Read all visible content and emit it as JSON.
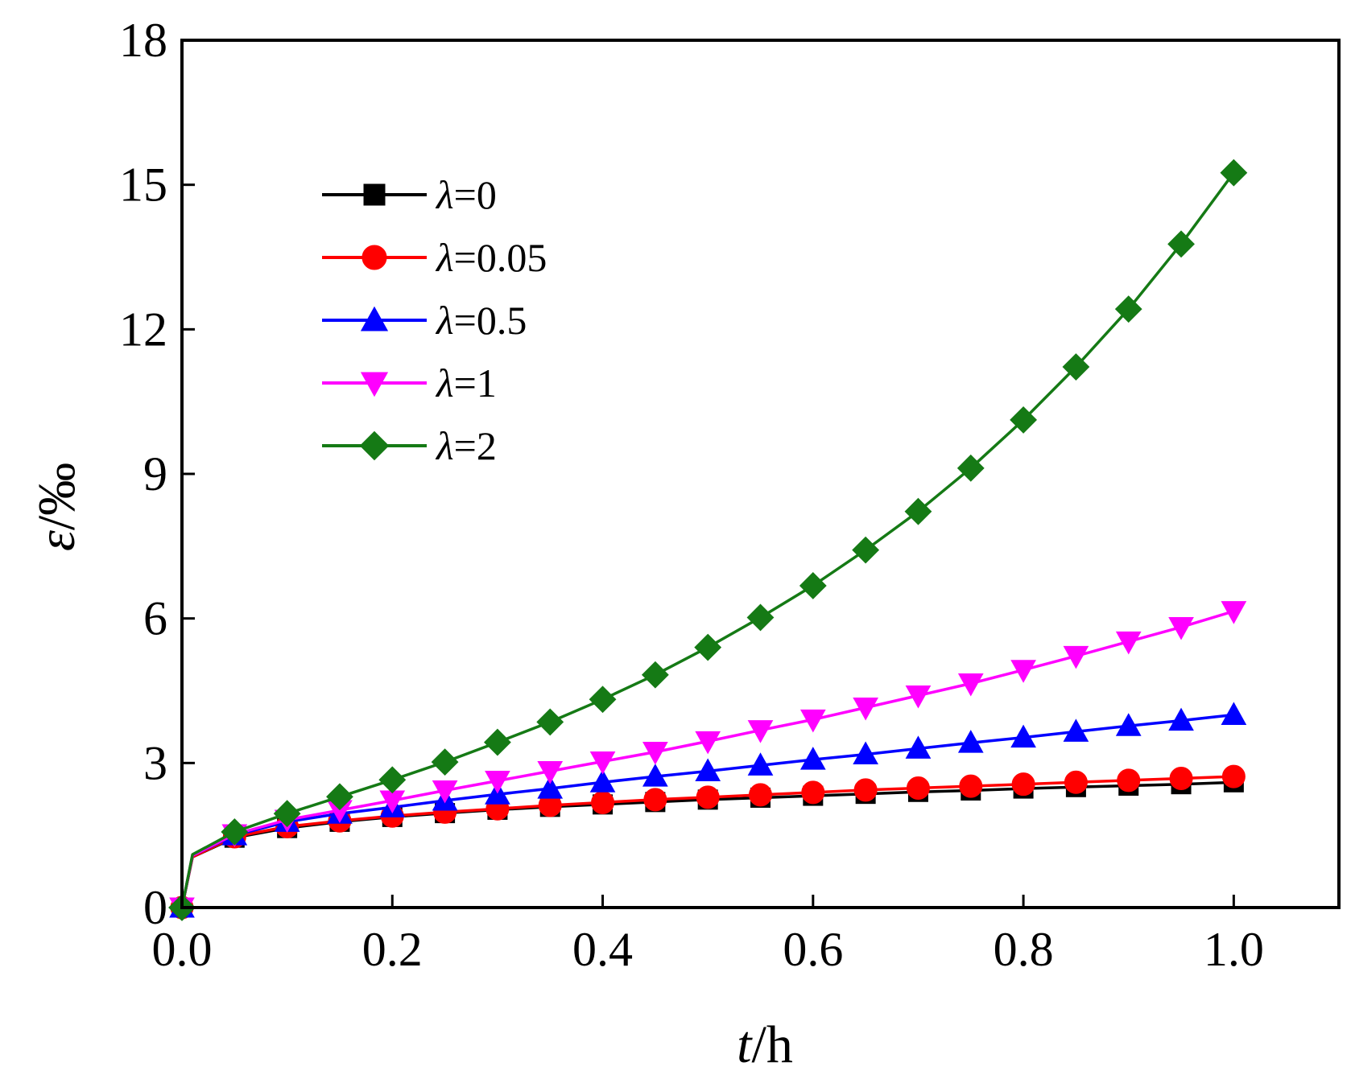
{
  "chart_data": {
    "type": "line",
    "title": "",
    "xlabel": {
      "symbol": "t",
      "unit": "/h"
    },
    "ylabel": {
      "symbol": "ε",
      "unit": "/‰"
    },
    "xlim": [
      0,
      1.1
    ],
    "ylim": [
      0,
      18
    ],
    "xticks": [
      0,
      0.2,
      0.4,
      0.6,
      0.8,
      1.0
    ],
    "xtick_labels": [
      "0.0",
      "0.2",
      "0.4",
      "0.6",
      "0.8",
      "1.0"
    ],
    "yticks": [
      0,
      3,
      6,
      9,
      12,
      15,
      18
    ],
    "ytick_labels": [
      "0",
      "3",
      "6",
      "9",
      "12",
      "15",
      "18"
    ],
    "grid": false,
    "legend_position": "top-left",
    "x": [
      0,
      0.01,
      0.05,
      0.1,
      0.15,
      0.2,
      0.25,
      0.3,
      0.35,
      0.4,
      0.45,
      0.5,
      0.55,
      0.6,
      0.65,
      0.7,
      0.75,
      0.8,
      0.85,
      0.9,
      0.95,
      1.0
    ],
    "series": [
      {
        "name": "λ=0",
        "symbol": "λ",
        "value_label": "=0",
        "color": "#000000",
        "marker": "square",
        "values": [
          0,
          1.05,
          1.45,
          1.65,
          1.78,
          1.88,
          1.96,
          2.03,
          2.09,
          2.14,
          2.19,
          2.24,
          2.28,
          2.32,
          2.36,
          2.4,
          2.43,
          2.47,
          2.5,
          2.53,
          2.56,
          2.6
        ]
      },
      {
        "name": "λ=0.05",
        "symbol": "λ",
        "value_label": "=0.05",
        "color": "#ff0000",
        "marker": "circle",
        "values": [
          0,
          1.05,
          1.47,
          1.68,
          1.8,
          1.9,
          1.98,
          2.05,
          2.12,
          2.18,
          2.24,
          2.29,
          2.34,
          2.39,
          2.44,
          2.48,
          2.52,
          2.56,
          2.6,
          2.64,
          2.68,
          2.72
        ]
      },
      {
        "name": "λ=0.5",
        "symbol": "λ",
        "value_label": "=0.5",
        "color": "#0000ff",
        "marker": "triangle-up",
        "values": [
          0,
          1.08,
          1.5,
          1.78,
          1.95,
          2.08,
          2.22,
          2.35,
          2.47,
          2.6,
          2.72,
          2.83,
          2.95,
          3.07,
          3.18,
          3.3,
          3.42,
          3.53,
          3.65,
          3.77,
          3.88,
          4.0
        ]
      },
      {
        "name": "λ=1",
        "symbol": "λ",
        "value_label": "=1",
        "color": "#ff00ff",
        "marker": "triangle-down",
        "values": [
          0,
          1.08,
          1.52,
          1.82,
          2.02,
          2.22,
          2.43,
          2.63,
          2.83,
          3.03,
          3.23,
          3.45,
          3.68,
          3.9,
          4.15,
          4.4,
          4.65,
          4.93,
          5.22,
          5.52,
          5.82,
          6.15
        ]
      },
      {
        "name": "λ=2",
        "symbol": "λ",
        "value_label": "=2",
        "color": "#157a15",
        "marker": "diamond",
        "values": [
          0,
          1.1,
          1.57,
          1.95,
          2.3,
          2.65,
          3.02,
          3.43,
          3.85,
          4.32,
          4.83,
          5.4,
          6.02,
          6.68,
          7.42,
          8.22,
          9.12,
          10.12,
          11.22,
          12.42,
          13.77,
          15.25
        ]
      }
    ]
  }
}
